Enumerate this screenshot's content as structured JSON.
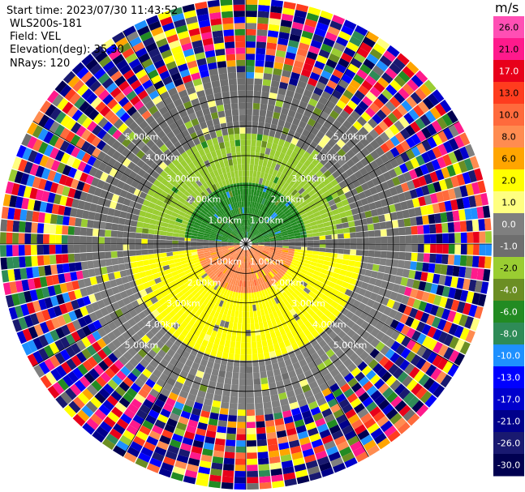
{
  "header": {
    "start_time": "Start time: 2023/07/30 11:43:52",
    "device": "WLS200s-181",
    "field": "Field: VEL",
    "elevation": "Elevation(deg): 35.30",
    "nrays": "NRays: 120"
  },
  "colorbar": {
    "unit": "m/s",
    "bins": [
      {
        "label": "26.0",
        "color": "#ff4fb4"
      },
      {
        "label": "21.0",
        "color": "#ff1a8c"
      },
      {
        "label": "17.0",
        "color": "#e8001a"
      },
      {
        "label": "13.0",
        "color": "#ff3c1e"
      },
      {
        "label": "10.0",
        "color": "#ff6a3c"
      },
      {
        "label": "8.0",
        "color": "#ff8c50"
      },
      {
        "label": "6.0",
        "color": "#ffa500"
      },
      {
        "label": "2.0",
        "color": "#ffff00"
      },
      {
        "label": "1.0",
        "color": "#ffff80"
      },
      {
        "label": "0.0",
        "color": "#7f7f7f"
      },
      {
        "label": "-1.0",
        "color": "#6e6e6e"
      },
      {
        "label": "-2.0",
        "color": "#9acd32"
      },
      {
        "label": "-4.0",
        "color": "#6b8e23"
      },
      {
        "label": "-6.0",
        "color": "#228b22"
      },
      {
        "label": "-8.0",
        "color": "#2e8b57"
      },
      {
        "label": "-10.0",
        "color": "#1e90ff"
      },
      {
        "label": "-13.0",
        "color": "#0000ff"
      },
      {
        "label": "-17.0",
        "color": "#0000cd"
      },
      {
        "label": "-21.0",
        "color": "#00008b"
      },
      {
        "label": "-26.0",
        "color": "#191970"
      },
      {
        "label": "-30.0",
        "color": "#000050"
      }
    ]
  },
  "chart_data": {
    "type": "heatmap",
    "projection": "polar",
    "field": "VEL",
    "units": "m/s",
    "range_rings_km": [
      1.0,
      2.0,
      3.0,
      4.0,
      5.0
    ],
    "range_ring_labels": [
      "1.00km",
      "2.00km",
      "3.00km",
      "4.00km",
      "5.00km"
    ],
    "radial_lines_deg": [
      0,
      30,
      60,
      90,
      120,
      150,
      180,
      210,
      240,
      270,
      300,
      330
    ],
    "nrays": 120,
    "max_range_km": 5.0,
    "pattern": {
      "near_north_sector_mps": -6.0,
      "north_sector_mps": -2.0,
      "near_south_sector_mps": 8.0,
      "south_sector_mps": 2.0,
      "far_ring_start_km": 3.3,
      "far_ring_note": "noise"
    }
  }
}
